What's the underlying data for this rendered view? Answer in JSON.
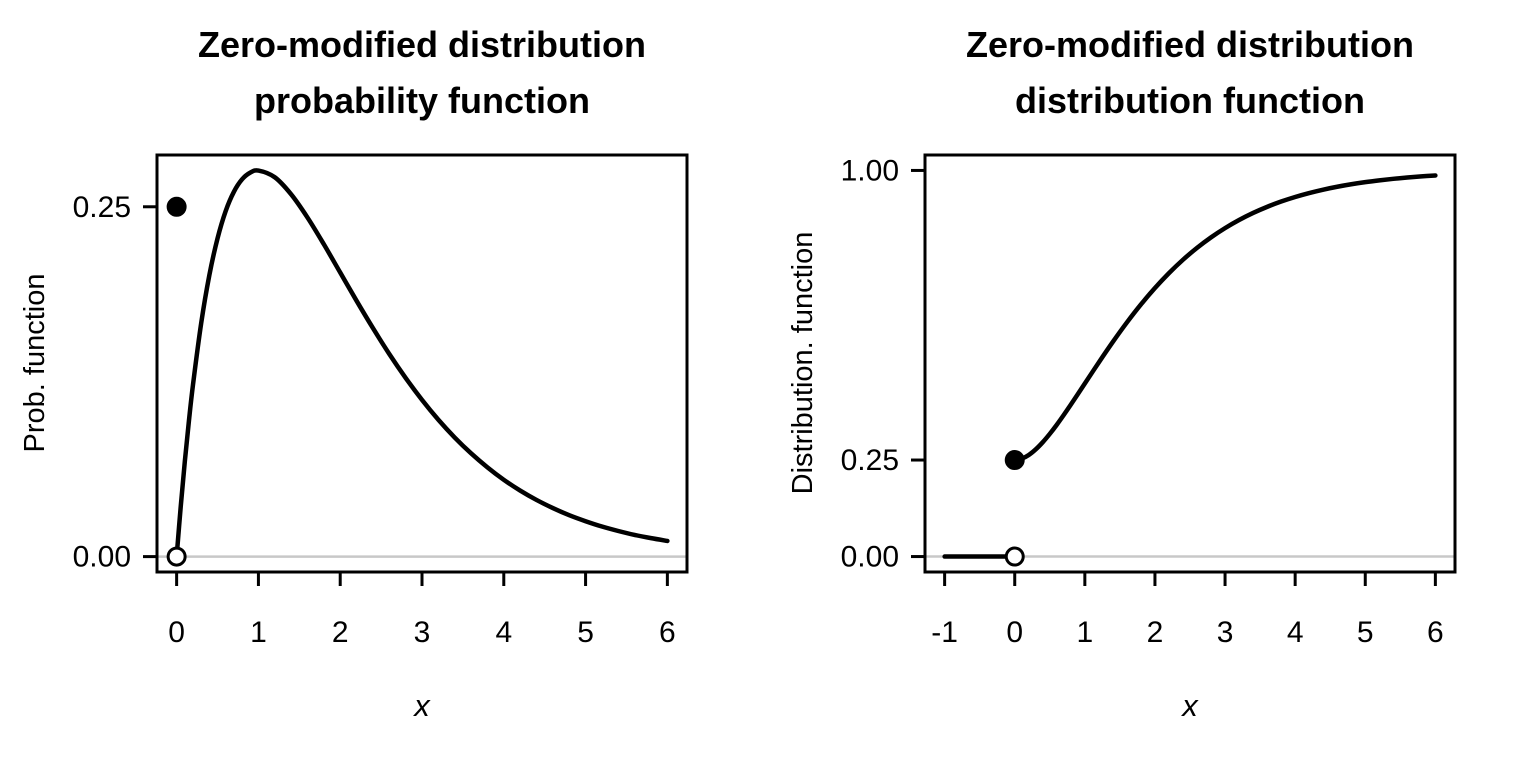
{
  "figure": {
    "background_color": "#ffffff",
    "ink_color": "#000000",
    "zero_line_color": "#c8c8c8"
  },
  "chart_data": [
    {
      "type": "line",
      "title": "Zero-modified distribution probability function",
      "title_lines": [
        "Zero-modified distribution",
        "probability function"
      ],
      "xlabel": "x",
      "ylabel": "Prob. function",
      "xlim": [
        -0.24,
        6.24
      ],
      "ylim": [
        -0.011,
        0.287
      ],
      "x_ticks": [
        0,
        1,
        2,
        3,
        4,
        5,
        6
      ],
      "x_tick_labels": [
        "0",
        "1",
        "2",
        "3",
        "4",
        "5",
        "6"
      ],
      "y_ticks": [
        0,
        0.25
      ],
      "y_tick_labels": [
        "0.00",
        "0.25"
      ],
      "grid": false,
      "legend": null,
      "reference_line_y": 0,
      "series": [
        {
          "name": "pdf-curve",
          "style": "smooth-line",
          "x": [
            0,
            0.05,
            0.1,
            0.15,
            0.2,
            0.3,
            0.4,
            0.5,
            0.6,
            0.7,
            0.8,
            0.9,
            1.0,
            1.2,
            1.4,
            1.6,
            1.8,
            2.0,
            2.2,
            2.4,
            2.6,
            2.8,
            3.0,
            3.2,
            3.4,
            3.6,
            3.8,
            4.0,
            4.2,
            4.4,
            4.6,
            4.8,
            5.0,
            5.2,
            5.4,
            5.6,
            5.8,
            6.0
          ],
          "y": [
            0,
            0.0357,
            0.0679,
            0.0968,
            0.1228,
            0.1667,
            0.2011,
            0.2274,
            0.247,
            0.2607,
            0.2696,
            0.2744,
            0.2759,
            0.2711,
            0.2589,
            0.2423,
            0.2232,
            0.203,
            0.1828,
            0.1633,
            0.1448,
            0.1277,
            0.112,
            0.0978,
            0.0851,
            0.0738,
            0.0638,
            0.0549,
            0.0472,
            0.0405,
            0.0347,
            0.0296,
            0.0253,
            0.0215,
            0.0183,
            0.0155,
            0.0132,
            0.0112
          ]
        }
      ],
      "points": [
        {
          "x": 0,
          "y": 0.25,
          "marker": "filled-circle"
        },
        {
          "x": 0,
          "y": 0,
          "marker": "open-circle"
        }
      ]
    },
    {
      "type": "line",
      "title": "Zero-modified distribution distribution function",
      "title_lines": [
        "Zero-modified distribution",
        "distribution function"
      ],
      "xlabel": "x",
      "ylabel": "Distribution. function",
      "xlim": [
        -1.28,
        6.28
      ],
      "ylim": [
        -0.04,
        1.04
      ],
      "x_ticks": [
        -1,
        0,
        1,
        2,
        3,
        4,
        5,
        6
      ],
      "x_tick_labels": [
        "-1",
        "0",
        "1",
        "2",
        "3",
        "4",
        "5",
        "6"
      ],
      "y_ticks": [
        0,
        0.25,
        1
      ],
      "y_tick_labels": [
        "0.00",
        "0.25",
        "1.00"
      ],
      "grid": false,
      "legend": null,
      "reference_line_y": 0,
      "series": [
        {
          "name": "cdf-flat-segment",
          "style": "line",
          "x": [
            -1,
            0
          ],
          "y": [
            0,
            0
          ]
        },
        {
          "name": "cdf-curve",
          "style": "smooth-line",
          "x": [
            0,
            0.1,
            0.2,
            0.3,
            0.4,
            0.5,
            0.6,
            0.7,
            0.8,
            0.9,
            1.0,
            1.2,
            1.4,
            1.6,
            1.8,
            2.0,
            2.2,
            2.4,
            2.6,
            2.8,
            3.0,
            3.2,
            3.4,
            3.6,
            3.8,
            4.0,
            4.2,
            4.4,
            4.6,
            4.8,
            5.0,
            5.2,
            5.4,
            5.6,
            5.8,
            6.0
          ],
          "y": [
            0.25,
            0.2535,
            0.2631,
            0.2777,
            0.2962,
            0.3177,
            0.3414,
            0.3669,
            0.3934,
            0.4206,
            0.4482,
            0.503,
            0.5561,
            0.6063,
            0.6529,
            0.6955,
            0.7341,
            0.7687,
            0.7995,
            0.8267,
            0.8506,
            0.8716,
            0.8899,
            0.9057,
            0.9195,
            0.9313,
            0.9415,
            0.9503,
            0.9578,
            0.9642,
            0.9697,
            0.9743,
            0.9783,
            0.9817,
            0.9846,
            0.987
          ]
        }
      ],
      "points": [
        {
          "x": 0,
          "y": 0.25,
          "marker": "filled-circle"
        },
        {
          "x": 0,
          "y": 0,
          "marker": "open-circle"
        }
      ]
    }
  ]
}
